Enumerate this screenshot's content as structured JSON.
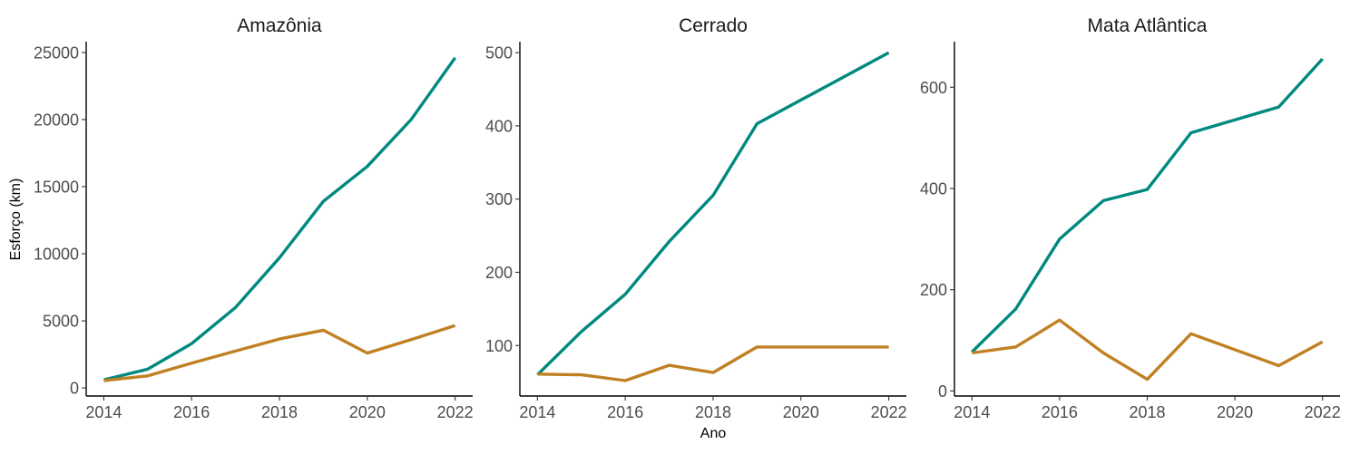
{
  "chart_data": {
    "type": "line",
    "xlabel": "Ano",
    "ylabel": "Esforço (km)",
    "grid": false,
    "legend": "none",
    "colors": {
      "teal": "#00897f",
      "gold": "#c08124"
    },
    "panels": [
      {
        "title": "Amazônia",
        "x_ticks": [
          2014,
          2016,
          2018,
          2020,
          2022
        ],
        "y_ticks": [
          0,
          5000,
          10000,
          15000,
          20000,
          25000
        ],
        "xlim": [
          2013.6,
          2022.4
        ],
        "ylim": [
          -600,
          25800
        ],
        "series": [
          {
            "color": "#00897f",
            "x": [
              2014,
              2015,
              2016,
              2017,
              2018,
              2019,
              2020,
              2021,
              2022
            ],
            "y": [
              600,
              1400,
              3300,
              6000,
              9700,
              13900,
              16500,
              20000,
              24600
            ]
          },
          {
            "color": "#c08124",
            "x": [
              2014,
              2015,
              2016,
              2017,
              2018,
              2019,
              2020,
              2021,
              2022
            ],
            "y": [
              550,
              900,
              1850,
              2750,
              3650,
              4300,
              2600,
              3600,
              4650
            ]
          }
        ]
      },
      {
        "title": "Cerrado",
        "x_ticks": [
          2014,
          2016,
          2018,
          2020,
          2022
        ],
        "y_ticks": [
          100,
          200,
          300,
          400,
          500
        ],
        "xlim": [
          2013.6,
          2022.4
        ],
        "ylim": [
          31,
          515
        ],
        "series": [
          {
            "color": "#00897f",
            "x": [
              2014,
              2015,
              2016,
              2017,
              2018,
              2019,
              2022
            ],
            "y": [
              60,
              119,
              170,
              242,
              305,
              403,
              500
            ]
          },
          {
            "color": "#c08124",
            "x": [
              2014,
              2015,
              2016,
              2017,
              2018,
              2019,
              2022
            ],
            "y": [
              61,
              60,
              52,
              73,
              63,
              98,
              98
            ]
          }
        ]
      },
      {
        "title": "Mata Atlântica",
        "x_ticks": [
          2014,
          2016,
          2018,
          2020,
          2022
        ],
        "y_ticks": [
          0,
          200,
          400,
          600
        ],
        "xlim": [
          2013.6,
          2022.4
        ],
        "ylim": [
          -10,
          690
        ],
        "series": [
          {
            "color": "#00897f",
            "x": [
              2014,
              2015,
              2016,
              2017,
              2018,
              2019,
              2021,
              2022
            ],
            "y": [
              77,
              162,
              300,
              376,
              398,
              510,
              561,
              656
            ]
          },
          {
            "color": "#c08124",
            "x": [
              2014,
              2015,
              2016,
              2017,
              2018,
              2019,
              2021,
              2022
            ],
            "y": [
              75,
              87,
              140,
              75,
              23,
              113,
              50,
              97
            ]
          }
        ]
      }
    ]
  }
}
